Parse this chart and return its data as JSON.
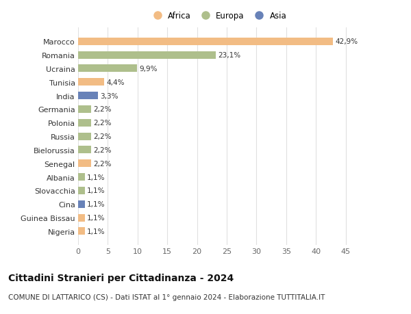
{
  "countries": [
    "Nigeria",
    "Guinea Bissau",
    "Cina",
    "Slovacchia",
    "Albania",
    "Senegal",
    "Bielorussia",
    "Russia",
    "Polonia",
    "Germania",
    "India",
    "Tunisia",
    "Ucraina",
    "Romania",
    "Marocco"
  ],
  "values": [
    1.1,
    1.1,
    1.1,
    1.1,
    1.1,
    2.2,
    2.2,
    2.2,
    2.2,
    2.2,
    3.3,
    4.4,
    9.9,
    23.1,
    42.9
  ],
  "labels": [
    "1,1%",
    "1,1%",
    "1,1%",
    "1,1%",
    "1,1%",
    "2,2%",
    "2,2%",
    "2,2%",
    "2,2%",
    "2,2%",
    "3,3%",
    "4,4%",
    "9,9%",
    "23,1%",
    "42,9%"
  ],
  "continents": [
    "Africa",
    "Africa",
    "Asia",
    "Europa",
    "Europa",
    "Africa",
    "Europa",
    "Europa",
    "Europa",
    "Europa",
    "Asia",
    "Africa",
    "Europa",
    "Europa",
    "Africa"
  ],
  "colors": {
    "Africa": "#F2BC84",
    "Europa": "#AEBF8C",
    "Asia": "#6882B8"
  },
  "legend_order": [
    "Africa",
    "Europa",
    "Asia"
  ],
  "xlim": [
    0,
    47
  ],
  "xticks": [
    0,
    5,
    10,
    15,
    20,
    25,
    30,
    35,
    40,
    45
  ],
  "title": "Cittadini Stranieri per Cittadinanza - 2024",
  "subtitle": "COMUNE DI LATTARICO (CS) - Dati ISTAT al 1° gennaio 2024 - Elaborazione TUTTITALIA.IT",
  "bg_color": "#ffffff",
  "grid_color": "#e0e0e0",
  "bar_label_fontsize": 7.5,
  "ytick_fontsize": 8,
  "xtick_fontsize": 8,
  "title_fontsize": 10,
  "subtitle_fontsize": 7.5,
  "bar_height": 0.55
}
